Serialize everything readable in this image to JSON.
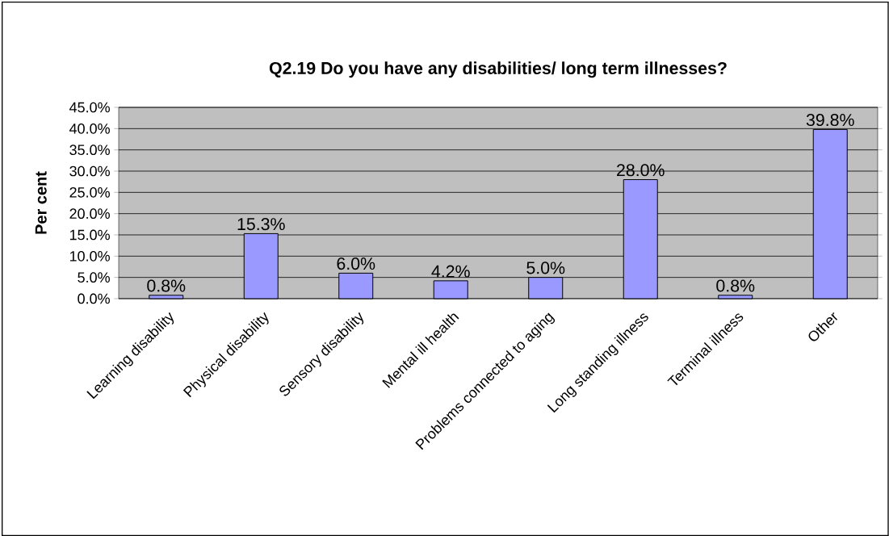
{
  "chart_data": {
    "type": "bar",
    "title": "Q2.19 Do you have any disabilities/ long term illnesses?",
    "ylabel": "Per cent",
    "categories": [
      "Learning disability",
      "Physical disability",
      "Sensory disability",
      "Mental ill health",
      "Problems connected to aging",
      "Long standing illness",
      "Terminal illness",
      "Other"
    ],
    "values": [
      0.8,
      15.3,
      6.0,
      4.2,
      5.0,
      28.0,
      0.8,
      39.8
    ],
    "value_labels": [
      "0.8%",
      "15.3%",
      "6.0%",
      "4.2%",
      "5.0%",
      "28.0%",
      "0.8%",
      "39.8%"
    ],
    "color": "#9999ff",
    "ylim": [
      0,
      45
    ],
    "yticks": [
      {
        "value": 0,
        "label": "0.0%"
      },
      {
        "value": 5,
        "label": "5.0%"
      },
      {
        "value": 10,
        "label": "10.0%"
      },
      {
        "value": 15,
        "label": "15.0%"
      },
      {
        "value": 20,
        "label": "20.0%"
      },
      {
        "value": 25,
        "label": "25.0%"
      },
      {
        "value": 30,
        "label": "30.0%"
      },
      {
        "value": 35,
        "label": "35.0%"
      },
      {
        "value": 40,
        "label": "40.0%"
      },
      {
        "value": 45,
        "label": "45.0%"
      }
    ],
    "grid": "y"
  }
}
